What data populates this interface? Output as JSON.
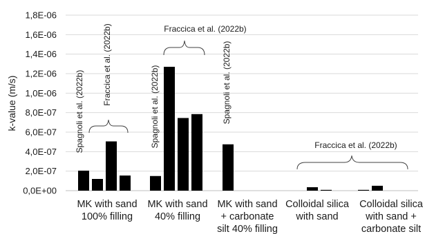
{
  "chart_data": {
    "type": "bar",
    "ylabel": "k-value (m/s)",
    "ylim": [
      0,
      1.8e-06
    ],
    "yticks": [
      0,
      2e-07,
      4e-07,
      6e-07,
      8e-07,
      1e-06,
      1.2e-06,
      1.4e-06,
      1.6e-06,
      1.8e-06
    ],
    "ytick_labels": [
      "0,0E+00",
      "2,0E-07",
      "4,0E-07",
      "6,0E-07",
      "8,0E-07",
      "1,0E-06",
      "1,2E-06",
      "1,4E-06",
      "1,6E-06",
      "1,8E-06"
    ],
    "grid": true,
    "bar_color": "#000000",
    "grid_color": "#d9d9d9",
    "categories": [
      {
        "label_lines": [
          "MK with sand",
          "100% filling"
        ],
        "values": [
          2.05e-07,
          1.2e-07,
          5.05e-07,
          1.55e-07
        ]
      },
      {
        "label_lines": [
          "MK with sand",
          "40% filling"
        ],
        "values": [
          1.5e-07,
          1.27e-06,
          7.45e-07,
          7.85e-07
        ]
      },
      {
        "label_lines": [
          "MK with sand",
          "+ carbonate",
          "silt 40% filling"
        ],
        "values": [
          4.75e-07
        ]
      },
      {
        "label_lines": [
          "Colloidal silica",
          "with sand"
        ],
        "values": [
          3.5e-08,
          8e-09
        ]
      },
      {
        "label_lines": [
          "Colloidal silica",
          "with sand +",
          "carbonate silt"
        ],
        "values": [
          8e-09,
          5e-08
        ]
      }
    ],
    "annotations": [
      {
        "text": "Spagnoli et al. (2022b)"
      },
      {
        "text": "Fraccica et al. (2022b)"
      },
      {
        "text": "Fraccica et al. (2022b)"
      },
      {
        "text": "Spagnoli et al. (2022b)"
      },
      {
        "text": "Spagnoli et al. (2022b)"
      },
      {
        "text": "Fraccica et al. (2022b)"
      }
    ]
  }
}
